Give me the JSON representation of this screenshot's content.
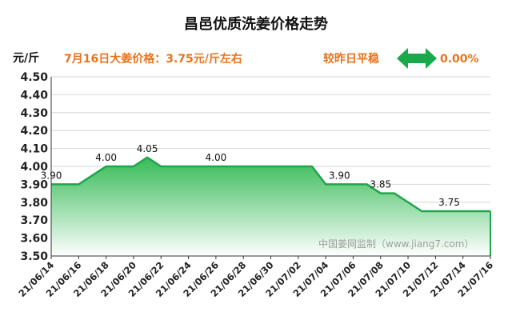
{
  "header": {
    "title": "昌邑优质洗姜价格走势",
    "unit": "元/斤",
    "price_note": "7月16日大姜价格：3.75元/斤左右",
    "compare_text": "较昨日平稳",
    "change_text": "0.00%",
    "trend_icon": "double-arrow-left-right-icon"
  },
  "watermark": "中国姜网监制（www.jiang7.com）",
  "colors": {
    "accent": "#e8731b",
    "line": "#1fa64a",
    "arrow": "#1aa84c",
    "fill_top": "#2cb84e",
    "fill_bottom": "#ffffff",
    "grid": "#d6d6d6",
    "axis": "#333333"
  },
  "chart_data": {
    "type": "area",
    "title": "昌邑优质洗姜价格走势",
    "ylabel": "元/斤",
    "xlabel": "",
    "ylim": [
      3.5,
      4.5
    ],
    "y_ticks": [
      "3.50",
      "3.60",
      "3.70",
      "3.80",
      "3.90",
      "4.00",
      "4.10",
      "4.20",
      "4.30",
      "4.40",
      "4.50"
    ],
    "grid": true,
    "x_tick_labels": [
      "21/06/14",
      "21/06/16",
      "21/06/18",
      "21/06/20",
      "21/06/22",
      "21/06/24",
      "21/06/26",
      "21/06/28",
      "21/06/30",
      "21/07/02",
      "21/07/04",
      "21/07/06",
      "21/07/08",
      "21/07/10",
      "21/07/12",
      "21/07/14",
      "21/07/16"
    ],
    "x": [
      "21/06/14",
      "21/06/15",
      "21/06/16",
      "21/06/17",
      "21/06/18",
      "21/06/19",
      "21/06/20",
      "21/06/21",
      "21/06/22",
      "21/06/23",
      "21/06/24",
      "21/06/25",
      "21/06/26",
      "21/06/27",
      "21/06/28",
      "21/06/29",
      "21/06/30",
      "21/07/01",
      "21/07/02",
      "21/07/03",
      "21/07/04",
      "21/07/05",
      "21/07/06",
      "21/07/07",
      "21/07/08",
      "21/07/09",
      "21/07/10",
      "21/07/11",
      "21/07/12",
      "21/07/13",
      "21/07/14",
      "21/07/15",
      "21/07/16"
    ],
    "values": [
      3.9,
      3.9,
      3.9,
      3.95,
      4.0,
      4.0,
      4.0,
      4.05,
      4.0,
      4.0,
      4.0,
      4.0,
      4.0,
      4.0,
      4.0,
      4.0,
      4.0,
      4.0,
      4.0,
      4.0,
      3.9,
      3.9,
      3.9,
      3.9,
      3.85,
      3.85,
      3.8,
      3.75,
      3.75,
      3.75,
      3.75,
      3.75,
      3.75
    ],
    "data_labels": [
      {
        "x": "21/06/14",
        "text": "3.90"
      },
      {
        "x": "21/06/18",
        "text": "4.00"
      },
      {
        "x": "21/06/21",
        "text": "4.05"
      },
      {
        "x": "21/06/26",
        "text": "4.00"
      },
      {
        "x": "21/07/05",
        "text": "3.90"
      },
      {
        "x": "21/07/08",
        "text": "3.85"
      },
      {
        "x": "21/07/13",
        "text": "3.75"
      }
    ]
  }
}
